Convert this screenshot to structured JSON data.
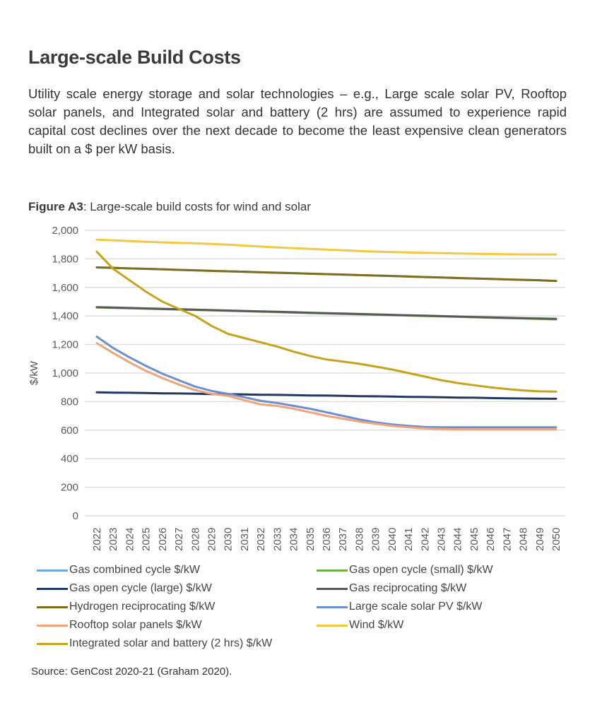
{
  "heading": "Large-scale Build Costs",
  "intro": "Utility scale energy storage and solar technologies – e.g., Large scale solar PV, Rooftop solar panels, and Integrated solar and battery (2 hrs) are assumed to experience rapid capital cost declines over the next decade to become the least expensive clean generators built on a $ per kW basis.",
  "figure": {
    "label": "Figure A3",
    "caption": ": Large-scale build costs for wind and solar"
  },
  "source": "Source: GenCost 2020-21 (Graham 2020).",
  "chart_data": {
    "type": "line",
    "title": "Large-scale build costs for wind and solar",
    "xlabel": "",
    "ylabel": "$/kW",
    "ylim": [
      0,
      2000
    ],
    "yticks": [
      0,
      200,
      400,
      600,
      800,
      1000,
      1200,
      1400,
      1600,
      1800,
      2000
    ],
    "ytick_labels": [
      "0",
      "200",
      "400",
      "600",
      "800",
      "1,000",
      "1,200",
      "1,400",
      "1,600",
      "1,800",
      "2,000"
    ],
    "grid": true,
    "legend_position": "bottom",
    "x": [
      "2022",
      "2023",
      "2024",
      "2025",
      "2026",
      "2027",
      "2028",
      "2029",
      "2030",
      "2031",
      "2032",
      "2033",
      "2034",
      "2035",
      "2036",
      "2037",
      "2038",
      "2039",
      "2040",
      "2041",
      "2042",
      "2043",
      "2044",
      "2045",
      "2046",
      "2047",
      "2048",
      "2049",
      "2050"
    ],
    "series": [
      {
        "name": "Gas combined cycle $/kW",
        "color": "#6fa8dc",
        "values": [
          1740,
          1737,
          1733,
          1730,
          1727,
          1723,
          1720,
          1716,
          1713,
          1710,
          1706,
          1703,
          1700,
          1696,
          1693,
          1690,
          1686,
          1683,
          1680,
          1676,
          1673,
          1670,
          1666,
          1663,
          1660,
          1656,
          1653,
          1650,
          1646
        ]
      },
      {
        "name": "Gas open cycle (small) $/kW",
        "color": "#70ad47",
        "values": [
          1460,
          1457,
          1454,
          1451,
          1448,
          1445,
          1442,
          1439,
          1436,
          1433,
          1430,
          1427,
          1424,
          1421,
          1418,
          1415,
          1412,
          1409,
          1406,
          1403,
          1400,
          1397,
          1394,
          1391,
          1388,
          1385,
          1382,
          1379,
          1376
        ]
      },
      {
        "name": "Gas open cycle (large) $/kW",
        "color": "#203864",
        "values": [
          865,
          863,
          862,
          860,
          858,
          857,
          855,
          853,
          852,
          850,
          848,
          847,
          845,
          843,
          842,
          840,
          838,
          837,
          835,
          833,
          832,
          830,
          828,
          827,
          825,
          823,
          822,
          821,
          820
        ]
      },
      {
        "name": "Gas reciprocating $/kW",
        "color": "#595959",
        "values": [
          1462,
          1459,
          1456,
          1453,
          1450,
          1447,
          1444,
          1441,
          1438,
          1435,
          1432,
          1429,
          1426,
          1423,
          1420,
          1417,
          1414,
          1411,
          1408,
          1405,
          1402,
          1399,
          1396,
          1393,
          1390,
          1387,
          1384,
          1382,
          1380
        ]
      },
      {
        "name": "Hydrogen reciprocating $/kW",
        "color": "#7f6d1e",
        "values": [
          1740,
          1737,
          1733,
          1730,
          1727,
          1723,
          1720,
          1716,
          1713,
          1710,
          1706,
          1703,
          1700,
          1696,
          1693,
          1690,
          1686,
          1683,
          1680,
          1676,
          1673,
          1670,
          1666,
          1663,
          1660,
          1656,
          1653,
          1650,
          1645
        ]
      },
      {
        "name": "Large scale solar PV $/kW",
        "color": "#6d8fcf",
        "values": [
          1255,
          1175,
          1110,
          1050,
          995,
          950,
          905,
          875,
          855,
          830,
          805,
          790,
          770,
          750,
          725,
          700,
          675,
          655,
          640,
          630,
          622,
          620,
          620,
          620,
          620,
          620,
          620,
          620,
          620
        ]
      },
      {
        "name": "Rooftop solar panels $/kW",
        "color": "#f0a478",
        "values": [
          1210,
          1140,
          1075,
          1015,
          965,
          920,
          880,
          855,
          840,
          810,
          780,
          770,
          750,
          725,
          700,
          680,
          660,
          645,
          630,
          620,
          612,
          608,
          606,
          605,
          605,
          605,
          605,
          605,
          605
        ]
      },
      {
        "name": "Wind $/kW",
        "color": "#f5c842",
        "values": [
          1935,
          1930,
          1925,
          1920,
          1916,
          1912,
          1909,
          1905,
          1900,
          1893,
          1886,
          1880,
          1875,
          1870,
          1865,
          1860,
          1855,
          1851,
          1848,
          1845,
          1842,
          1840,
          1838,
          1836,
          1834,
          1832,
          1831,
          1830,
          1830
        ]
      },
      {
        "name": "Integrated solar and battery (2 hrs) $/kW",
        "color": "#c9a21b",
        "values": [
          1850,
          1730,
          1650,
          1570,
          1500,
          1450,
          1400,
          1330,
          1275,
          1245,
          1215,
          1185,
          1150,
          1120,
          1095,
          1080,
          1065,
          1045,
          1025,
          1000,
          975,
          950,
          930,
          915,
          900,
          888,
          878,
          872,
          870
        ]
      }
    ]
  },
  "legend": [
    {
      "name": "Gas combined cycle $/kW",
      "color": "#6fa8dc"
    },
    {
      "name": "Gas open cycle (small) $/kW",
      "color": "#70ad47"
    },
    {
      "name": "Gas open cycle (large) $/kW",
      "color": "#203864"
    },
    {
      "name": "Gas reciprocating $/kW",
      "color": "#595959"
    },
    {
      "name": "Hydrogen reciprocating $/kW",
      "color": "#7f6d1e"
    },
    {
      "name": "Large scale solar PV $/kW",
      "color": "#6d8fcf"
    },
    {
      "name": "Rooftop solar panels $/kW",
      "color": "#f0a478"
    },
    {
      "name": "Wind $/kW",
      "color": "#f5c842"
    },
    {
      "name": "Integrated solar and battery (2 hrs) $/kW",
      "color": "#c9a21b"
    }
  ]
}
